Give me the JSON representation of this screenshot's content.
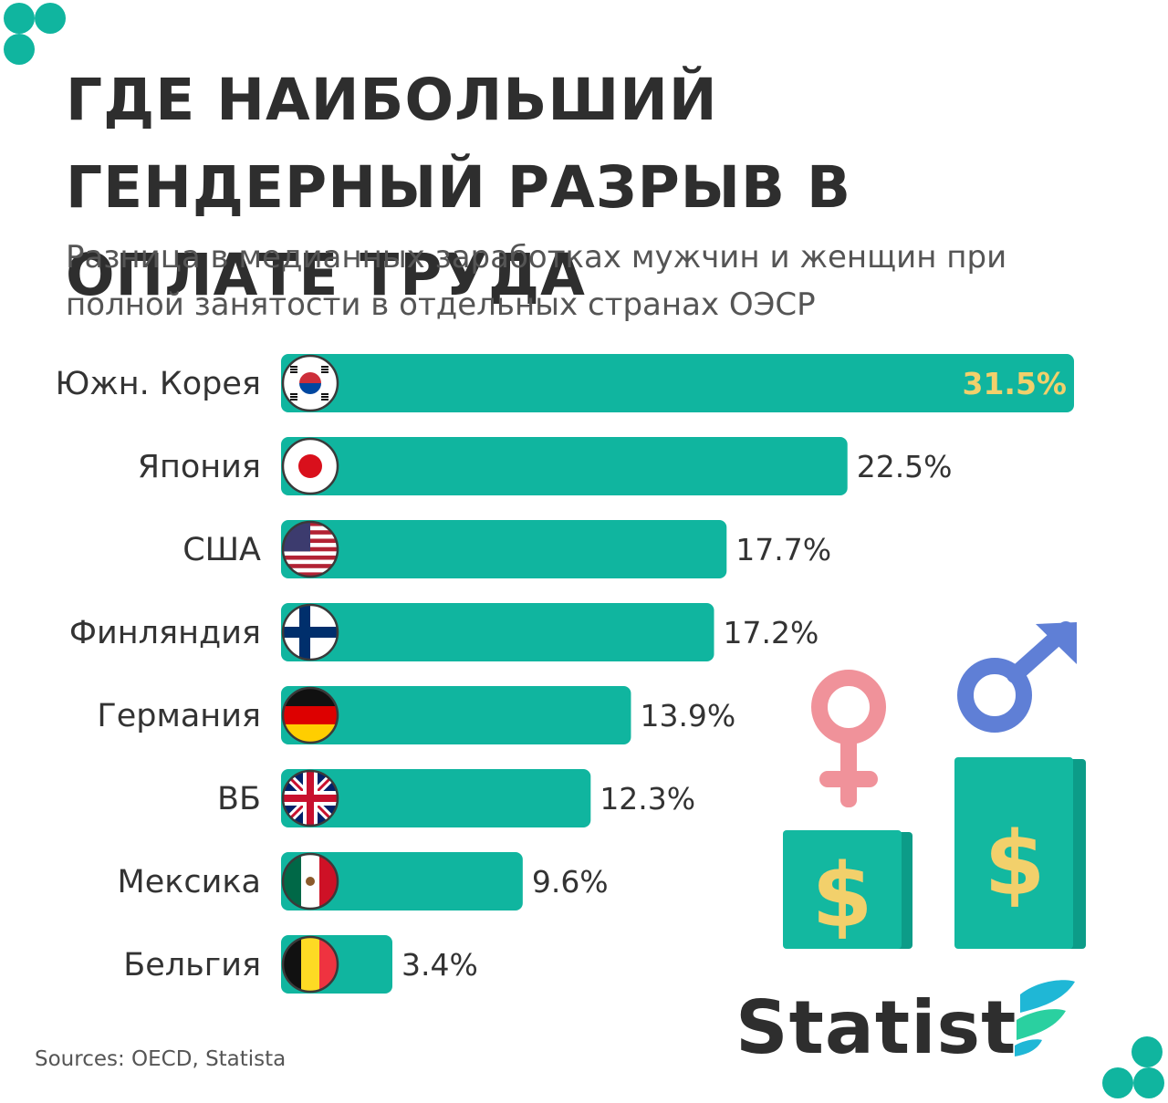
{
  "title": "ГДЕ НАИБОЛЬШИЙ ГЕНДЕРНЫЙ РАЗРЫВ В ОПЛАТЕ ТРУДА",
  "subtitle": "Разница в медианных заработках мужчин и женщин при полной занятости в отдельных странах ОЭСР",
  "sources": "Sources: OECD, Statista",
  "logo": "Statist",
  "colors": {
    "bar": "#10b59f",
    "bar_dark": "#0ea18d",
    "highlight": "#f2d06b",
    "text": "#2e2e2e",
    "female": "#f0929a",
    "male": "#5f7fd6"
  },
  "icons": [
    "south-korea-flag-icon",
    "japan-flag-icon",
    "usa-flag-icon",
    "finland-flag-icon",
    "germany-flag-icon",
    "uk-flag-icon",
    "mexico-flag-icon",
    "belgium-flag-icon",
    "female-symbol-icon",
    "male-symbol-icon",
    "dollar-icon",
    "statista-logo-icon"
  ],
  "chart_data": {
    "type": "bar",
    "orientation": "horizontal",
    "categories": [
      "Южн. Корея",
      "Япония",
      "США",
      "Финляндия",
      "Германия",
      "ВБ",
      "Мексика",
      "Бельгия"
    ],
    "values": [
      31.5,
      22.5,
      17.7,
      17.2,
      13.9,
      12.3,
      9.6,
      3.4
    ],
    "value_labels": [
      "31.5%",
      "22.5%",
      "17.7%",
      "17.2%",
      "13.9%",
      "12.3%",
      "9.6%",
      "3.4%"
    ],
    "unit": "%",
    "xlim": [
      0,
      31.5
    ],
    "grid": false,
    "legend": "none"
  }
}
